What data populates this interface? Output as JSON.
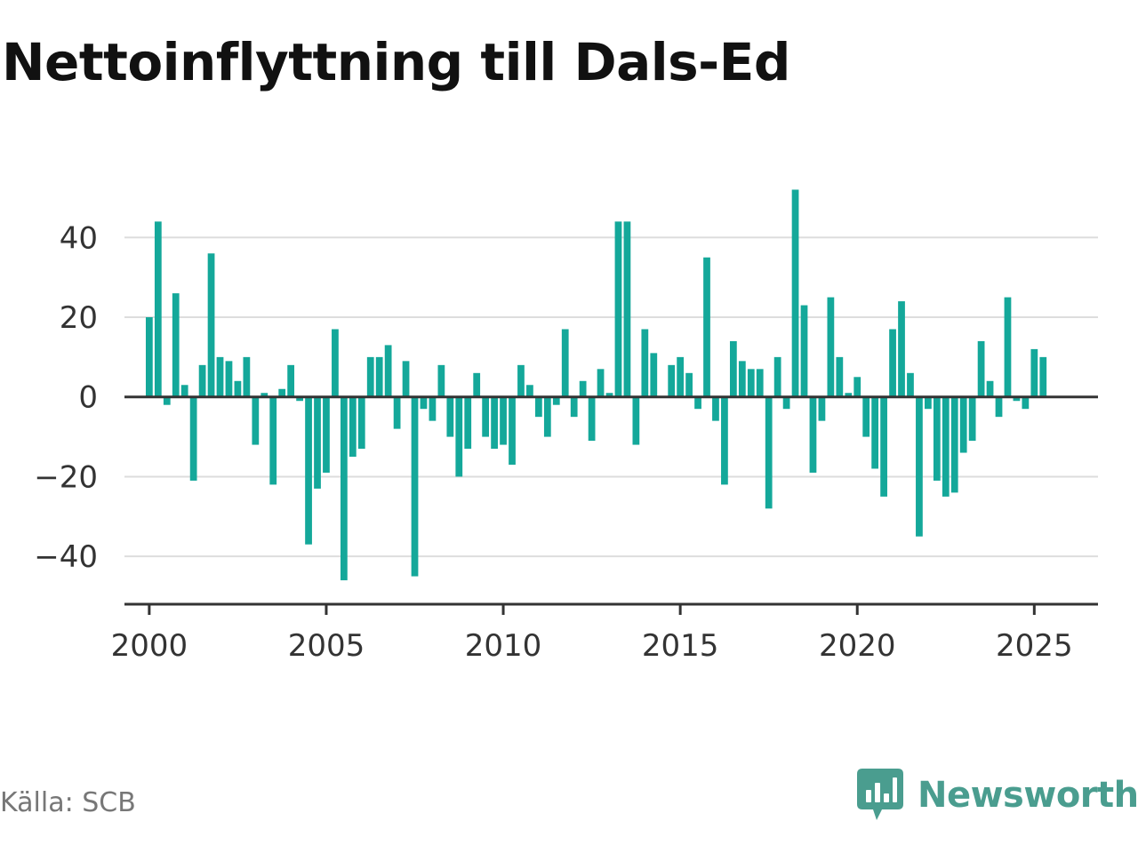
{
  "title": "Nettoinflyttning till Dals-Ed",
  "source": "Källa: SCB",
  "brand": {
    "name": "Newsworthy",
    "logo_icon": "newsworthy-bar-chart-bubble-icon",
    "color": "#4a9d8f"
  },
  "colors": {
    "bar": "#14a89a",
    "zero_line": "#333333",
    "grid": "#dddddd",
    "axis": "#333333"
  },
  "chart_data": {
    "type": "bar",
    "title": "Nettoinflyttning till Dals-Ed",
    "xlabel": "",
    "ylabel": "",
    "frequency": "quarterly",
    "x_start": "2000-Q1",
    "xlim": [
      1999.3,
      2026.8
    ],
    "ylim": [
      -52,
      55
    ],
    "x_ticks": [
      2000,
      2005,
      2010,
      2015,
      2020,
      2025
    ],
    "x_tick_labels": [
      "2000",
      "2005",
      "2010",
      "2015",
      "2020",
      "2025"
    ],
    "y_ticks": [
      -40,
      -20,
      0,
      20,
      40
    ],
    "y_tick_labels": [
      "−40",
      "−20",
      "0",
      "20",
      "40"
    ],
    "grid": true,
    "legend": "none",
    "values": [
      20,
      44,
      -2,
      26,
      3,
      -21,
      8,
      36,
      10,
      9,
      4,
      10,
      -12,
      1,
      -22,
      2,
      8,
      -1,
      -37,
      -23,
      -19,
      17,
      -46,
      -15,
      -13,
      10,
      10,
      13,
      -8,
      9,
      -45,
      -3,
      -6,
      8,
      -10,
      -20,
      -13,
      6,
      -10,
      -13,
      -12,
      -17,
      8,
      3,
      -5,
      -10,
      -2,
      17,
      -5,
      4,
      -11,
      7,
      1,
      44,
      44,
      -12,
      17,
      11,
      0,
      8,
      10,
      6,
      -3,
      35,
      -6,
      -22,
      14,
      9,
      7,
      7,
      -28,
      10,
      -3,
      52,
      23,
      -19,
      -6,
      25,
      10,
      1,
      5,
      -10,
      -18,
      -25,
      17,
      24,
      6,
      -35,
      -3,
      -21,
      -25,
      -24,
      -14,
      -11,
      14,
      4,
      -5,
      25,
      -1,
      -3,
      12,
      10
    ]
  }
}
